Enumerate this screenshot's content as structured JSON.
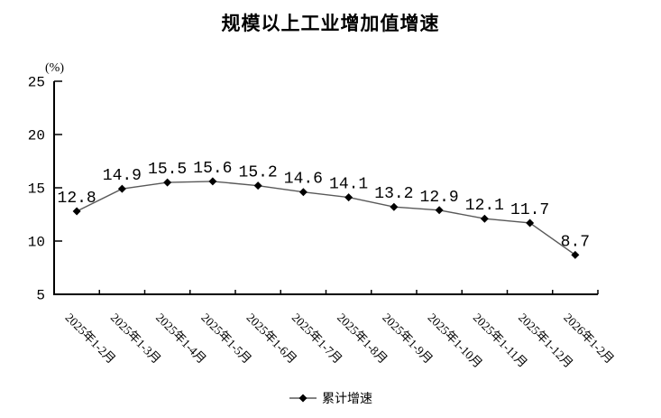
{
  "chart_data": {
    "type": "line",
    "title": "规模以上工业增加值增速",
    "unit_label": "(%)",
    "xlabel": "",
    "ylabel": "(%)",
    "categories": [
      "2025年1-2月",
      "2025年1-3月",
      "2025年1-4月",
      "2025年1-5月",
      "2025年1-6月",
      "2025年1-7月",
      "2025年1-8月",
      "2025年1-9月",
      "2025年1-10月",
      "2025年1-11月",
      "2025年1-12月",
      "2026年1-2月"
    ],
    "series": [
      {
        "name": "累计增速",
        "values": [
          12.8,
          14.9,
          15.5,
          15.6,
          15.2,
          14.6,
          14.1,
          13.2,
          12.9,
          12.1,
          11.7,
          8.7
        ]
      }
    ],
    "ylim": [
      5,
      25
    ],
    "yticks": [
      5,
      10,
      15,
      20,
      25
    ],
    "grid": false,
    "legend_position": "bottom",
    "data_labels_shown": true,
    "colors": {
      "line": "#595959",
      "marker": "#000000",
      "text": "#000000",
      "axis": "#000000",
      "background": "#ffffff"
    }
  }
}
